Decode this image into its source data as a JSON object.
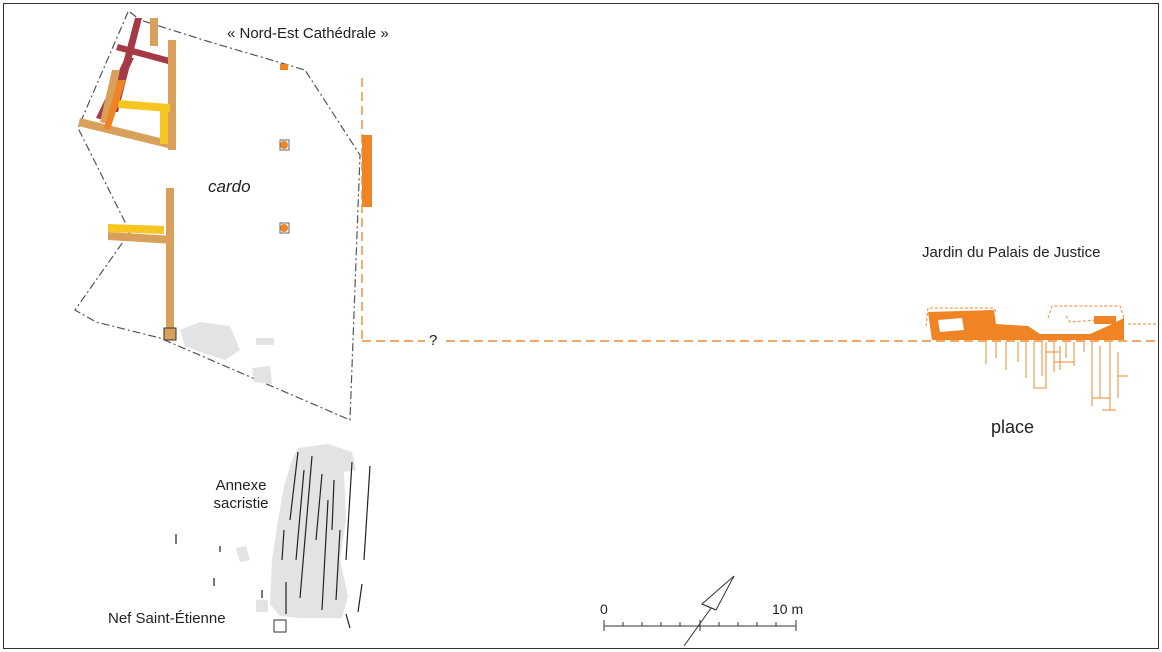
{
  "labels": {
    "nord_est": "« Nord-Est Cathédrale »",
    "cardo": "cardo",
    "jardin": "Jardin du Palais de Justice",
    "place": "place",
    "annexe_line1": "Annexe",
    "annexe_line2": "sacristie",
    "nef": "Nef Saint-Étienne",
    "question": "?"
  },
  "scale_bar": {
    "start_label": "0",
    "end_label": "10 m"
  },
  "north_arrow": {
    "icon": "north-arrow-icon"
  },
  "colors": {
    "frame": "#333333",
    "zone_outline": "#555555",
    "wall_tan": "#d9a05b",
    "wall_maroon": "#a33a45",
    "wall_yellow": "#f7c520",
    "wall_orange": "#f08324",
    "dashed_orange": "#ee8a2e",
    "grey_fill": "#e2e3e5",
    "black_lines": "#222222"
  }
}
